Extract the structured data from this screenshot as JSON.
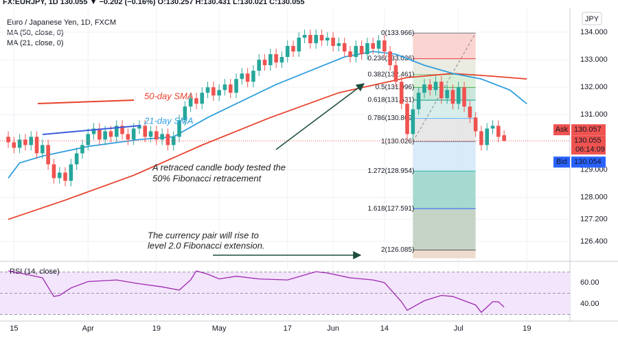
{
  "chart_data": {
    "type": "candlestick",
    "header": "FX:EURJPY, 1D 130.055 ▼ −0.202 (−0.16%) O:130.257 H:130.431 L:130.021 C:130.055",
    "title": "Euro / Japanese Yen, 1D, FXCM",
    "currency": "JPY",
    "up_color": "#26a69a",
    "down_color": "#ef5350",
    "candles": [
      [
        130.2,
        130.4,
        129.8,
        130.0
      ],
      [
        130.0,
        130.2,
        129.6,
        129.8
      ],
      [
        129.8,
        130.3,
        129.6,
        130.1
      ],
      [
        130.1,
        130.3,
        129.7,
        129.9
      ],
      [
        129.9,
        130.4,
        129.7,
        130.2
      ],
      [
        130.2,
        130.4,
        129.4,
        129.6
      ],
      [
        129.6,
        130.1,
        129.4,
        129.9
      ],
      [
        129.9,
        130.1,
        129.0,
        129.2
      ],
      [
        129.2,
        129.4,
        128.5,
        128.7
      ],
      [
        128.7,
        129.1,
        128.5,
        128.9
      ],
      [
        128.9,
        129.1,
        128.4,
        128.6
      ],
      [
        128.6,
        129.4,
        128.4,
        129.2
      ],
      [
        129.2,
        129.8,
        129.0,
        129.6
      ],
      [
        129.6,
        130.1,
        129.4,
        129.9
      ],
      [
        129.9,
        130.5,
        129.7,
        130.3
      ],
      [
        130.3,
        130.7,
        130.1,
        130.5
      ],
      [
        130.5,
        130.7,
        129.9,
        130.1
      ],
      [
        130.1,
        130.6,
        129.9,
        130.4
      ],
      [
        130.4,
        130.6,
        130.0,
        130.2
      ],
      [
        130.2,
        130.8,
        130.0,
        130.6
      ],
      [
        130.6,
        130.8,
        130.1,
        130.3
      ],
      [
        130.3,
        130.5,
        129.9,
        130.1
      ],
      [
        130.1,
        130.7,
        129.9,
        130.5
      ],
      [
        130.5,
        130.8,
        130.3,
        130.6
      ],
      [
        130.6,
        130.8,
        130.0,
        130.2
      ],
      [
        130.2,
        130.6,
        130.0,
        130.4
      ],
      [
        130.4,
        130.6,
        129.9,
        130.1
      ],
      [
        130.1,
        130.5,
        129.9,
        130.3
      ],
      [
        130.3,
        130.5,
        129.7,
        129.9
      ],
      [
        129.9,
        130.4,
        129.7,
        130.2
      ],
      [
        130.2,
        131.0,
        130.0,
        130.8
      ],
      [
        130.8,
        131.5,
        130.6,
        131.3
      ],
      [
        131.3,
        131.8,
        131.1,
        131.6
      ],
      [
        131.6,
        131.8,
        131.2,
        131.4
      ],
      [
        131.4,
        132.0,
        131.2,
        131.8
      ],
      [
        131.8,
        132.2,
        131.6,
        132.0
      ],
      [
        132.0,
        132.2,
        131.5,
        131.7
      ],
      [
        131.7,
        132.1,
        131.5,
        131.9
      ],
      [
        131.9,
        132.3,
        131.7,
        132.1
      ],
      [
        132.1,
        132.3,
        131.6,
        131.8
      ],
      [
        131.8,
        132.5,
        131.6,
        132.3
      ],
      [
        132.3,
        132.7,
        132.1,
        132.5
      ],
      [
        132.5,
        132.7,
        132.0,
        132.2
      ],
      [
        132.2,
        132.8,
        132.0,
        132.6
      ],
      [
        132.6,
        133.2,
        132.4,
        133.0
      ],
      [
        133.0,
        133.2,
        132.6,
        132.8
      ],
      [
        132.8,
        133.4,
        132.6,
        133.2
      ],
      [
        133.2,
        133.4,
        132.7,
        132.9
      ],
      [
        132.9,
        133.3,
        132.7,
        133.1
      ],
      [
        133.1,
        133.7,
        132.9,
        133.5
      ],
      [
        133.5,
        133.7,
        133.1,
        133.3
      ],
      [
        133.3,
        134.0,
        133.1,
        133.8
      ],
      [
        133.8,
        134.1,
        133.6,
        133.9
      ],
      [
        133.9,
        134.1,
        133.4,
        133.6
      ],
      [
        133.6,
        134.1,
        133.4,
        133.9
      ],
      [
        133.9,
        134.1,
        133.5,
        133.7
      ],
      [
        133.7,
        134.0,
        133.5,
        133.8
      ],
      [
        133.8,
        134.0,
        133.3,
        133.5
      ],
      [
        133.5,
        133.8,
        133.3,
        133.6
      ],
      [
        133.6,
        133.8,
        133.1,
        133.3
      ],
      [
        133.3,
        133.5,
        132.9,
        133.1
      ],
      [
        133.1,
        133.7,
        132.9,
        133.5
      ],
      [
        133.5,
        133.7,
        133.0,
        133.2
      ],
      [
        133.2,
        133.8,
        133.0,
        133.6
      ],
      [
        133.6,
        133.8,
        133.2,
        133.4
      ],
      [
        133.4,
        133.9,
        133.2,
        133.7
      ],
      [
        133.7,
        133.9,
        133.1,
        133.3
      ],
      [
        133.3,
        133.5,
        132.6,
        132.8
      ],
      [
        132.8,
        133.0,
        132.0,
        132.2
      ],
      [
        132.2,
        132.4,
        131.2,
        131.4
      ],
      [
        131.4,
        131.6,
        130.1,
        130.3
      ],
      [
        130.3,
        131.4,
        130.1,
        131.2
      ],
      [
        131.2,
        132.0,
        131.0,
        131.8
      ],
      [
        131.8,
        132.3,
        131.6,
        132.1
      ],
      [
        132.1,
        132.3,
        131.7,
        131.9
      ],
      [
        131.9,
        132.4,
        131.7,
        132.2
      ],
      [
        132.2,
        132.4,
        131.4,
        131.6
      ],
      [
        131.6,
        132.1,
        131.4,
        131.9
      ],
      [
        131.9,
        132.1,
        131.2,
        131.4
      ],
      [
        131.4,
        132.2,
        131.2,
        132.0
      ],
      [
        132.0,
        132.2,
        131.1,
        131.3
      ],
      [
        131.3,
        131.5,
        130.7,
        130.9
      ],
      [
        130.9,
        131.1,
        130.2,
        130.4
      ],
      [
        130.4,
        130.6,
        129.7,
        129.9
      ],
      [
        129.9,
        130.7,
        129.7,
        130.5
      ],
      [
        130.5,
        130.8,
        130.3,
        130.6
      ],
      [
        130.6,
        130.8,
        130.0,
        130.2
      ],
      [
        130.257,
        130.431,
        130.021,
        130.055
      ]
    ],
    "series": [
      {
        "name": "MA (50, close, 0)",
        "color": "#e8422c",
        "x": [
          0,
          10,
          22,
          34,
          46,
          58,
          70,
          78,
          85,
          91
        ],
        "values": [
          127.2,
          127.9,
          128.8,
          129.9,
          130.9,
          131.8,
          132.35,
          132.5,
          132.4,
          132.3
        ]
      },
      {
        "name": "MA (21, close, 0)",
        "color": "#2f9ee0",
        "x": [
          0,
          2,
          6,
          14,
          23,
          29,
          35,
          41,
          47,
          53,
          59,
          64,
          68,
          73,
          78,
          83,
          88,
          91
        ],
        "values": [
          128.7,
          129.25,
          129.5,
          129.85,
          130.1,
          130.2,
          130.9,
          131.5,
          132.1,
          132.6,
          133.1,
          133.3,
          133.2,
          132.8,
          132.5,
          132.3,
          131.9,
          131.4
        ]
      }
    ],
    "xlim": [
      -1.45,
      98.55
    ],
    "xticks": [
      {
        "value": 1,
        "label": "15"
      },
      {
        "value": 14,
        "label": "Apr"
      },
      {
        "value": 26,
        "label": "19"
      },
      {
        "value": 37,
        "label": "May"
      },
      {
        "value": 49,
        "label": "17"
      },
      {
        "value": 57,
        "label": "Jun"
      },
      {
        "value": 66,
        "label": "14"
      },
      {
        "value": 79,
        "label": "Jul"
      },
      {
        "value": 91,
        "label": "19"
      }
    ],
    "ylim": [
      125.7,
      134.87
    ],
    "yticks": [
      {
        "value": 126.4,
        "label": "126.400"
      },
      {
        "value": 127.2,
        "label": "127.200"
      },
      {
        "value": 128,
        "label": "128.000"
      },
      {
        "value": 129,
        "label": "129.000"
      },
      {
        "value": 131,
        "label": "131.000"
      },
      {
        "value": 132,
        "label": "132.000"
      },
      {
        "value": 133,
        "label": "133.000"
      },
      {
        "value": 134,
        "label": "134.000"
      }
    ],
    "grid": true,
    "fibonacci": {
      "x": [
        71,
        82
      ],
      "levels": [
        {
          "value": 133.966,
          "label": "0(133.966)",
          "color": "#787b86",
          "fill": "#f9cdc9"
        },
        {
          "value": 133.036,
          "label": "0.236(133.036)",
          "color": "#f23645",
          "fill": "#e6e8dc"
        },
        {
          "value": 132.461,
          "label": "0.382(132.461)",
          "color": "#81c784",
          "fill": "#d3ecd3"
        },
        {
          "value": 131.996,
          "label": "0.5(131.996)",
          "color": "#4caf50",
          "fill": "#bfe3d4"
        },
        {
          "value": 131.531,
          "label": "0.618(131.531)",
          "color": "#089981",
          "fill": "#d0ebe7"
        },
        {
          "value": 130.869,
          "label": "0.786(130.869)",
          "color": "#64b5f6",
          "fill": "#e3e3e3"
        },
        {
          "value": 130.026,
          "label": "1(130.026)",
          "color": "#787b86",
          "fill": "#d2e6f8"
        },
        {
          "value": 128.954,
          "label": "1.272(128.954)",
          "color": "#2dbfa8",
          "fill": "#97d3c8"
        },
        {
          "value": 127.591,
          "label": "1.618(127.591)",
          "color": "#2962ff",
          "fill": "#bccdbd"
        },
        {
          "value": 126.085,
          "label": "2(126.085)",
          "color": "#555",
          "fill": "#ead6c6"
        }
      ]
    },
    "annotations": {
      "sma50": "50-day SMA",
      "sma21": "21-day SMA",
      "retrace": [
        "A retraced candle body tested the",
        "50% Fibonacci retracement"
      ],
      "extension": [
        "The currency pair will rise to",
        "level 2.0 Fibonacci extension."
      ]
    },
    "ask": {
      "label": "Ask",
      "value": 130.057
    },
    "last": {
      "value": 130.055,
      "countdown": "06:14:09"
    },
    "bid": {
      "label": "Bid",
      "value": 130.054
    },
    "rsi": {
      "name": "RSI (14, close)",
      "color": "#9c27b0",
      "x": [
        0,
        3,
        6,
        8,
        9,
        11,
        14,
        19,
        23,
        27,
        30,
        32,
        33,
        35,
        37,
        40,
        44,
        49,
        54,
        56,
        60,
        64,
        66,
        69,
        70,
        73,
        76,
        78,
        82,
        83,
        85,
        86,
        87
      ],
      "values": [
        71,
        68,
        64.5,
        47,
        48,
        55,
        61,
        62.5,
        59,
        56,
        53,
        62.5,
        71,
        68,
        63.5,
        66,
        63.5,
        62.5,
        70.3,
        69,
        64.5,
        62.5,
        60,
        42,
        34,
        43,
        48,
        47,
        39,
        32,
        42,
        42,
        37
      ],
      "ylim": [
        23.9,
        78.7
      ],
      "yticks": [
        {
          "value": 60,
          "label": "60.00"
        },
        {
          "value": 40,
          "label": "40.00"
        }
      ],
      "levels": [
        30,
        50,
        70
      ]
    }
  }
}
